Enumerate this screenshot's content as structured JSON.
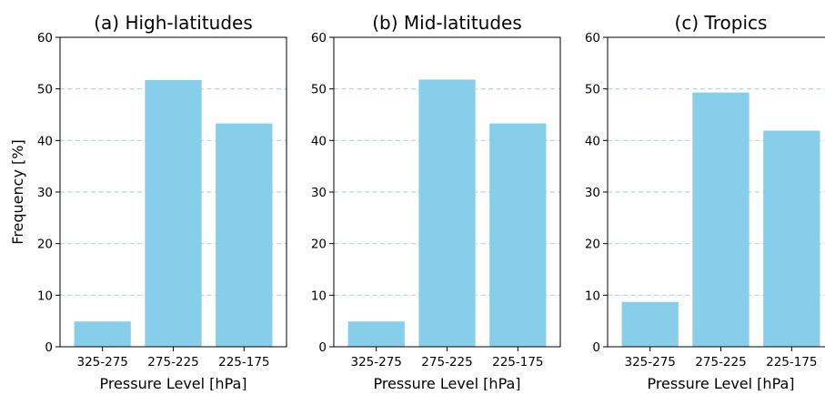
{
  "figure": {
    "ylabel": "Frequency [%]",
    "bar_color": "#87CEEB",
    "grid_color": "#ADD8E6"
  },
  "chart_data": [
    {
      "type": "bar",
      "title": "(a) High-latitudes",
      "categories": [
        "325-275",
        "275-225",
        "225-175"
      ],
      "values": [
        4.9,
        51.7,
        43.3
      ],
      "xlabel": "Pressure Level [hPa]",
      "ylabel": "Frequency [%]",
      "ylim": [
        0,
        60
      ],
      "yticks": [
        0,
        10,
        20,
        30,
        40,
        50,
        60
      ],
      "grid": "y-dashed"
    },
    {
      "type": "bar",
      "title": "(b) Mid-latitudes",
      "categories": [
        "325-275",
        "275-225",
        "225-175"
      ],
      "values": [
        4.9,
        51.8,
        43.3
      ],
      "xlabel": "Pressure Level [hPa]",
      "ylim": [
        0,
        60
      ],
      "yticks": [
        0,
        10,
        20,
        30,
        40,
        50,
        60
      ],
      "grid": "y-dashed"
    },
    {
      "type": "bar",
      "title": "(c) Tropics",
      "categories": [
        "325-275",
        "275-225",
        "225-175"
      ],
      "values": [
        8.7,
        49.3,
        41.9
      ],
      "xlabel": "Pressure Level [hPa]",
      "ylim": [
        0,
        60
      ],
      "yticks": [
        0,
        10,
        20,
        30,
        40,
        50,
        60
      ],
      "grid": "y-dashed"
    }
  ]
}
